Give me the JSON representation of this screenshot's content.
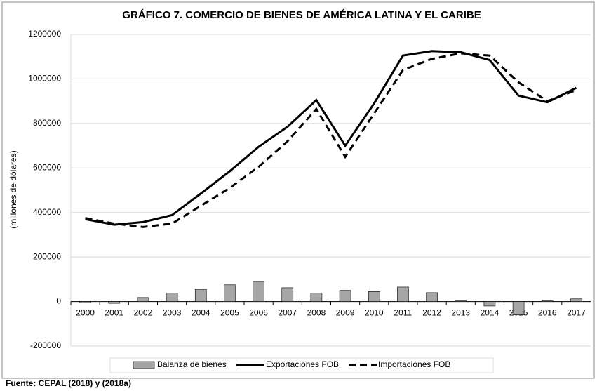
{
  "chart_data": {
    "type": "combo",
    "title": "GRÁFICO 7. COMERCIO DE BIENES DE AMÉRICA LATINA Y EL CARIBE",
    "ylabel": "(millones de dólares)",
    "source": "Fuente: CEPAL (2018) y (2018a)",
    "categories": [
      "2000",
      "2001",
      "2002",
      "2003",
      "2004",
      "2005",
      "2006",
      "2007",
      "2008",
      "2009",
      "2010",
      "2011",
      "2012",
      "2013",
      "2014",
      "2015",
      "2016",
      "2017"
    ],
    "series": [
      {
        "name": "Balanza de bienes",
        "type": "bar",
        "color": "#a6a6a6",
        "values": [
          -5000,
          -8000,
          18000,
          38000,
          55000,
          75000,
          90000,
          62000,
          38000,
          50000,
          45000,
          65000,
          40000,
          3000,
          -20000,
          -60000,
          3000,
          12000
        ]
      },
      {
        "name": "Exportaciones FOB",
        "type": "line",
        "style": "solid",
        "color": "#000000",
        "values": [
          370000,
          345000,
          357000,
          388000,
          485000,
          585000,
          695000,
          785000,
          905000,
          700000,
          890000,
          1105000,
          1125000,
          1120000,
          1085000,
          925000,
          895000,
          960000
        ]
      },
      {
        "name": "Importaciones FOB",
        "type": "line",
        "style": "dashed",
        "color": "#000000",
        "values": [
          375000,
          350000,
          335000,
          350000,
          430000,
          510000,
          605000,
          720000,
          865000,
          650000,
          845000,
          1040000,
          1090000,
          1115000,
          1105000,
          985000,
          900000,
          950000
        ]
      }
    ],
    "ylim": [
      -200000,
      1200000
    ],
    "yticks": [
      -200000,
      0,
      200000,
      400000,
      600000,
      800000,
      1000000,
      1200000
    ],
    "grid": true,
    "legend": "bottom"
  }
}
